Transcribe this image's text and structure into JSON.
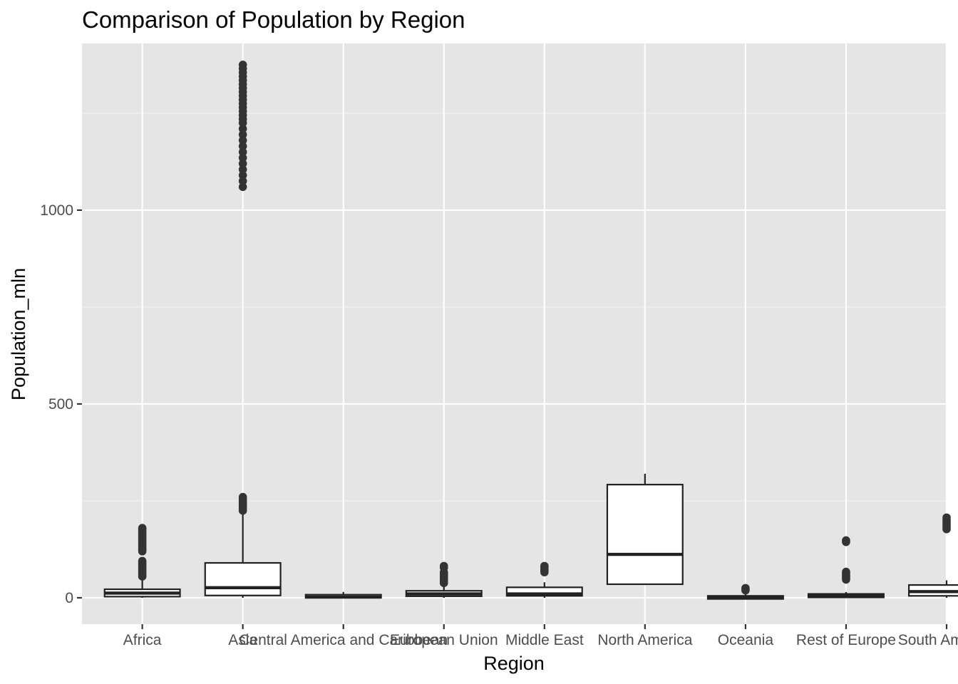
{
  "chart_data": {
    "type": "boxplot",
    "title": "Comparison of Population by Region",
    "xlabel": "Region",
    "ylabel": "Population_mln",
    "ylim": [
      -68,
      1430
    ],
    "yticks": [
      0,
      500,
      1000
    ],
    "grid": true,
    "legend": "none",
    "colors": {
      "panel": "#e5e5e5",
      "grid_major": "#ffffff",
      "grid_minor": "#f2f2f2",
      "box_fill": "#ffffff",
      "box_line": "#222222",
      "outlier": "#333333",
      "tick_text": "#4d4d4d"
    },
    "categories": [
      "Africa",
      "Asia",
      "Central America and Caribbean",
      "European Union",
      "Middle East",
      "North America",
      "Oceania",
      "Rest of Europe",
      "South America"
    ],
    "boxes": [
      {
        "q1": 3,
        "median": 12,
        "q3": 22,
        "whisker_low": 0,
        "whisker_high": 50,
        "outliers": [
          180,
          176,
          172,
          168,
          164,
          160,
          156,
          152,
          148,
          144,
          140,
          136,
          132,
          128,
          124,
          120,
          95,
          91,
          87,
          83,
          79,
          75,
          71,
          67,
          63,
          59,
          55
        ]
      },
      {
        "q1": 6,
        "median": 26,
        "q3": 90,
        "whisker_low": 0,
        "whisker_high": 220,
        "outliers": [
          1375,
          1365,
          1355,
          1345,
          1335,
          1325,
          1315,
          1305,
          1295,
          1285,
          1275,
          1265,
          1255,
          1245,
          1235,
          1225,
          1210,
          1195,
          1180,
          1165,
          1150,
          1135,
          1120,
          1105,
          1090,
          1075,
          1060,
          260,
          255,
          250,
          245,
          240,
          235,
          230,
          225
        ]
      },
      {
        "q1": 0,
        "median": 2,
        "q3": 8,
        "whisker_low": 0,
        "whisker_high": 15,
        "outliers": []
      },
      {
        "q1": 4,
        "median": 10,
        "q3": 18,
        "whisker_low": 0,
        "whisker_high": 28,
        "outliers": [
          82,
          78,
          66,
          62,
          58,
          54,
          50,
          46,
          42,
          38
        ]
      },
      {
        "q1": 5,
        "median": 10,
        "q3": 27,
        "whisker_low": 0,
        "whisker_high": 40,
        "outliers": [
          82,
          78,
          74,
          70,
          66
        ]
      },
      {
        "q1": 35,
        "median": 112,
        "q3": 292,
        "whisker_low": 35,
        "whisker_high": 320,
        "outliers": []
      },
      {
        "q1": -3,
        "median": 0,
        "q3": 5,
        "whisker_low": -3,
        "whisker_high": 10,
        "outliers": [
          25,
          22,
          19
        ]
      },
      {
        "q1": 1,
        "median": 5,
        "q3": 10,
        "whisker_low": 0,
        "whisker_high": 15,
        "outliers": [
          148,
          144,
          67,
          63,
          59,
          55,
          51,
          47
        ]
      },
      {
        "q1": 5,
        "median": 16,
        "q3": 33,
        "whisker_low": 0,
        "whisker_high": 45,
        "outliers": [
          207,
          202,
          197,
          192,
          187,
          182,
          177
        ]
      }
    ]
  }
}
